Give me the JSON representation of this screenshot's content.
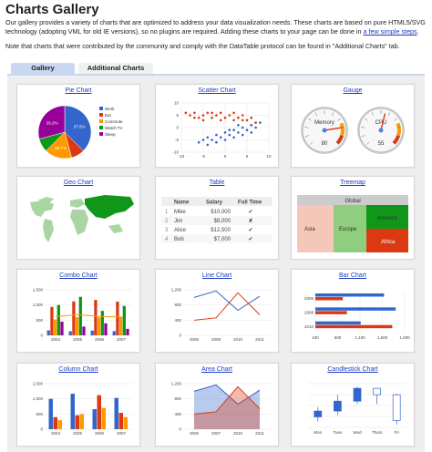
{
  "header": {
    "title": "Charts Gallery",
    "intro_text": "Our gallery provides a variety of charts that are optimized to address your data visualization needs. These charts are based on pure HTML5/SVG technology (adopting VML for old IE versions), so no plugins are required. Adding these charts to your page can be done in",
    "intro_link": "a few simple steps",
    "intro_end": ".",
    "note": "Note that charts that were contributed by the community and comply with the DataTable protocol can be found in \"Additional Charts\" tab."
  },
  "tabs": [
    {
      "label": "Gallery",
      "active": true
    },
    {
      "label": "Additional Charts",
      "active": false
    }
  ],
  "cards": [
    {
      "title": "Pie Chart"
    },
    {
      "title": "Scatter Chart"
    },
    {
      "title": "Gauge"
    },
    {
      "title": "Geo Chart"
    },
    {
      "title": "Table"
    },
    {
      "title": "Treemap"
    },
    {
      "title": "Combo Chart"
    },
    {
      "title": "Line Chart"
    },
    {
      "title": "Bar Chart"
    },
    {
      "title": "Column Chart"
    },
    {
      "title": "Area Chart"
    },
    {
      "title": "Candlestick Chart"
    }
  ],
  "chart_data": [
    {
      "type": "pie",
      "categories": [
        "Work",
        "Eat",
        "Commute",
        "Watch TV",
        "Sleep"
      ],
      "values": [
        37.5,
        8.3,
        16.7,
        8.3,
        29.2
      ],
      "labels": [
        "37.5%",
        "",
        "16.7%",
        "",
        "29.2%"
      ],
      "colors": [
        "#3366cc",
        "#dc3912",
        "#ff9900",
        "#109618",
        "#990099"
      ]
    },
    {
      "type": "scatter",
      "xlim": [
        -10,
        10
      ],
      "ylim": [
        -10,
        10
      ],
      "xticks": [
        "-10",
        "-5",
        "0",
        "5",
        "10"
      ],
      "yticks": [
        "10",
        "5",
        "0",
        "-5",
        "-10"
      ],
      "series": [
        {
          "color": "#dc3912",
          "points": [
            [
              -9,
              6
            ],
            [
              -8,
              5
            ],
            [
              -7,
              6
            ],
            [
              -6,
              4
            ],
            [
              -5,
              5
            ],
            [
              -4,
              6
            ],
            [
              -3,
              4
            ],
            [
              -2,
              5
            ],
            [
              -1,
              6
            ],
            [
              0,
              4
            ],
            [
              1,
              5
            ],
            [
              2,
              6
            ],
            [
              3,
              4
            ],
            [
              4,
              5
            ],
            [
              5,
              3
            ],
            [
              6,
              4
            ],
            [
              7,
              2
            ],
            [
              -7,
              4
            ],
            [
              -5,
              3
            ],
            [
              -3,
              6
            ],
            [
              -1,
              3
            ],
            [
              2,
              3
            ],
            [
              4,
              3
            ],
            [
              6,
              1
            ]
          ]
        },
        {
          "color": "#3366cc",
          "points": [
            [
              -6,
              -6
            ],
            [
              -5,
              -5
            ],
            [
              -4,
              -4
            ],
            [
              -3,
              -5
            ],
            [
              -2,
              -3
            ],
            [
              -1,
              -4
            ],
            [
              0,
              -2
            ],
            [
              1,
              -3
            ],
            [
              2,
              -1
            ],
            [
              3,
              -2
            ],
            [
              4,
              0
            ],
            [
              5,
              -1
            ],
            [
              6,
              1
            ],
            [
              7,
              0
            ],
            [
              8,
              2
            ],
            [
              -2,
              -6
            ],
            [
              0,
              -5
            ],
            [
              2,
              -4
            ],
            [
              4,
              -3
            ],
            [
              6,
              -2
            ],
            [
              -4,
              -7
            ],
            [
              1,
              -1
            ],
            [
              3,
              1
            ]
          ]
        }
      ]
    },
    {
      "type": "gauge",
      "gauges": [
        {
          "label": "Memory",
          "value": 80,
          "value_text": "80"
        },
        {
          "label": "CPU",
          "value": 55,
          "value_text": "55"
        }
      ]
    },
    {
      "type": "map",
      "highlight_color": "#109618",
      "base_color": "#a8d5a2"
    },
    {
      "type": "table",
      "columns": [
        "Name",
        "Salary",
        "Full Time"
      ],
      "rows": [
        {
          "n": "1",
          "name": "Mike",
          "salary": "$10,000",
          "ft": "✔"
        },
        {
          "n": "2",
          "name": "Jim",
          "salary": "$8,000",
          "ft": "✘"
        },
        {
          "n": "3",
          "name": "Alice",
          "salary": "$12,500",
          "ft": "✔"
        },
        {
          "n": "4",
          "name": "Bob",
          "salary": "$7,000",
          "ft": "✔"
        }
      ]
    },
    {
      "type": "treemap",
      "root": "Global",
      "nodes": [
        {
          "label": "Asia",
          "color": "#f4c7b8"
        },
        {
          "label": "Europe",
          "color": "#8fce7e"
        },
        {
          "label": "America",
          "color": "#109618"
        },
        {
          "label": "Africa",
          "color": "#dc3912"
        }
      ]
    },
    {
      "type": "bar",
      "categories": [
        "2004",
        "2005",
        "2006",
        "2007"
      ],
      "yticks": [
        "1,500",
        "1,000",
        "500",
        "0"
      ],
      "ylim": [
        0,
        1500
      ],
      "series": [
        {
          "color": "#3366cc",
          "values": [
            165,
            135,
            157,
            139
          ]
        },
        {
          "color": "#dc3912",
          "values": [
            938,
            1120,
            1167,
            1110
          ]
        },
        {
          "color": "#ff9900",
          "values": [
            522,
            599,
            587,
            615
          ]
        },
        {
          "color": "#109618",
          "values": [
            998,
            1268,
            807,
            968
          ]
        },
        {
          "color": "#990099",
          "values": [
            450,
            288,
            397,
            215
          ]
        }
      ],
      "line": {
        "color": "#ff9900",
        "values": [
          614,
          682,
          623,
          609
        ]
      }
    },
    {
      "type": "line",
      "categories": [
        "2006",
        "2009",
        "2010",
        "2011"
      ],
      "yticks": [
        "1,200",
        "800",
        "400",
        "0"
      ],
      "ylim": [
        0,
        1200
      ],
      "series": [
        {
          "color": "#3366cc",
          "values": [
            1000,
            1170,
            660,
            1030
          ]
        },
        {
          "color": "#dc3912",
          "values": [
            400,
            460,
            1120,
            540
          ]
        }
      ]
    },
    {
      "type": "bar",
      "orientation": "horizontal",
      "categories": [
        "2006",
        "2008",
        "2010"
      ],
      "xticks": [
        "100",
        "600",
        "1,100",
        "1,600",
        "1,000"
      ],
      "series": [
        {
          "color": "#3366cc",
          "values": [
            1000,
            1170,
            660
          ]
        },
        {
          "color": "#dc3912",
          "values": [
            400,
            460,
            1120
          ]
        }
      ]
    },
    {
      "type": "bar",
      "categories": [
        "2004",
        "2005",
        "2006",
        "2007"
      ],
      "yticks": [
        "1,500",
        "1,000",
        "500",
        "0"
      ],
      "ylim": [
        0,
        1500
      ],
      "series": [
        {
          "color": "#3366cc",
          "values": [
            1000,
            1170,
            660,
            1030
          ]
        },
        {
          "color": "#dc3912",
          "values": [
            400,
            460,
            1120,
            540
          ]
        },
        {
          "color": "#ff9900",
          "values": [
            300,
            500,
            700,
            400
          ]
        }
      ]
    },
    {
      "type": "area",
      "categories": [
        "2006",
        "2007",
        "2010",
        "2011"
      ],
      "yticks": [
        "1,200",
        "800",
        "400",
        "0"
      ],
      "ylim": [
        0,
        1200
      ],
      "series": [
        {
          "color": "#3366cc",
          "values": [
            1000,
            1170,
            660,
            1030
          ]
        },
        {
          "color": "#dc3912",
          "values": [
            400,
            460,
            1120,
            540
          ]
        }
      ]
    },
    {
      "type": "candlestick",
      "categories": [
        "Mon",
        "Tues",
        "Wed",
        "Thurs",
        "Fri"
      ],
      "candles": [
        [
          20,
          28,
          38,
          45
        ],
        [
          31,
          38,
          55,
          66
        ],
        [
          50,
          55,
          77,
          80
        ],
        [
          77,
          77,
          66,
          50
        ],
        [
          68,
          66,
          22,
          15
        ]
      ]
    }
  ]
}
